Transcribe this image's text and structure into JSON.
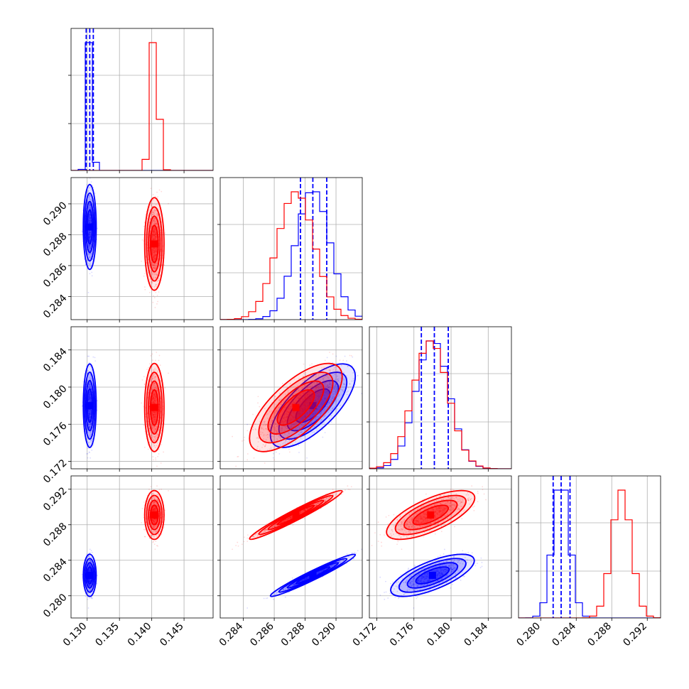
{
  "chart_data": {
    "type": "corner",
    "grid": true,
    "params": [
      {
        "range": [
          0.1275,
          0.1495
        ],
        "ticks": [
          "0.130",
          "0.135",
          "0.140",
          "0.145"
        ]
      },
      {
        "range": [
          0.2825,
          0.2917
        ],
        "ticks": [
          "0.284",
          "0.286",
          "0.288",
          "0.290"
        ]
      },
      {
        "range": [
          0.1712,
          0.1865
        ],
        "ticks": [
          "0.172",
          "0.176",
          "0.180",
          "0.184"
        ]
      },
      {
        "range": [
          0.2775,
          0.2935
        ],
        "ticks": [
          "0.280",
          "0.284",
          "0.288",
          "0.292"
        ]
      }
    ],
    "series": [
      {
        "color": "#0000ff",
        "stats": [
          {
            "mean": 0.1304,
            "sd": 0.0004,
            "quantiles": [
              0.12985,
              0.1304,
              0.13095
            ]
          },
          {
            "mean": 0.2885,
            "sd": 0.0011,
            "quantiles": [
              0.2877,
              0.2885,
              0.2894
            ]
          },
          {
            "mean": 0.178,
            "sd": 0.0018,
            "quantiles": [
              0.1768,
              0.1782,
              0.1797
            ]
          },
          {
            "mean": 0.2823,
            "sd": 0.00095,
            "quantiles": [
              0.2814,
              0.2823,
              0.2833
            ]
          }
        ],
        "corr": [
          [
            1,
            0,
            0,
            0
          ],
          [
            0,
            1,
            0.7,
            0.97
          ],
          [
            0,
            0.7,
            1,
            0.7
          ],
          [
            0,
            0.97,
            0.7,
            1
          ]
        ]
      },
      {
        "color": "#ff0000",
        "stats": [
          {
            "mean": 0.1404,
            "sd": 0.0006,
            "quantiles": [
              0.1398,
              0.1404,
              0.141
            ]
          },
          {
            "mean": 0.2874,
            "sd": 0.0012,
            "quantiles": [
              0.2862,
              0.2874,
              0.2886
            ]
          },
          {
            "mean": 0.1778,
            "sd": 0.0019,
            "quantiles": [
              0.1759,
              0.1778,
              0.1797
            ]
          },
          {
            "mean": 0.2891,
            "sd": 0.0011,
            "quantiles": [
              0.288,
              0.2891,
              0.2902
            ]
          }
        ],
        "corr": [
          [
            1,
            0,
            0,
            0
          ],
          [
            0,
            1,
            0.7,
            0.97
          ],
          [
            0,
            0.7,
            1,
            0.7
          ],
          [
            0,
            0.97,
            0.7,
            1
          ]
        ]
      }
    ]
  }
}
